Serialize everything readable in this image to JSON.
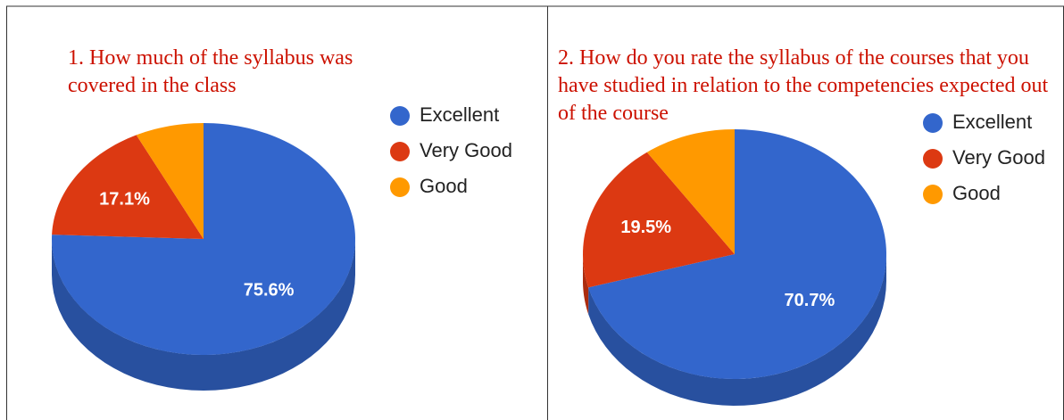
{
  "chart_data": [
    {
      "type": "pie",
      "title": "1. How much of the syllabus was covered in the class",
      "categories": [
        "Excellent",
        "Very Good",
        "Good"
      ],
      "values": [
        75.6,
        17.1,
        7.3
      ],
      "value_labels": [
        "75.6%",
        "17.1%",
        null
      ],
      "colors": [
        "#3366cc",
        "#dc3912",
        "#ff9900"
      ],
      "legend": "right"
    },
    {
      "type": "pie",
      "title": "2. How do you rate the syllabus of the courses that you have studied in relation to the competencies expected out of the course",
      "categories": [
        "Excellent",
        "Very Good",
        "Good"
      ],
      "values": [
        70.7,
        19.5,
        9.8
      ],
      "value_labels": [
        "70.7%",
        "19.5%",
        null
      ],
      "colors": [
        "#3366cc",
        "#dc3912",
        "#ff9900"
      ],
      "legend": "right"
    }
  ]
}
